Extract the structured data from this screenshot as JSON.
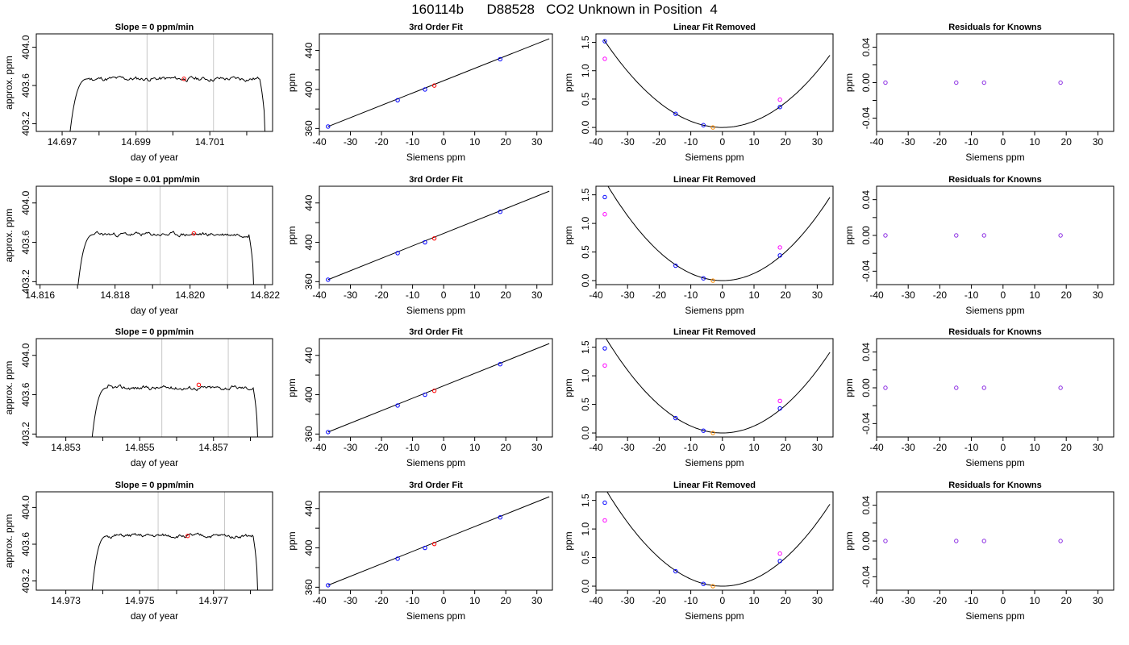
{
  "figure": {
    "title": "160114b      D88528   CO2 Unknown in Position  4"
  },
  "colors": {
    "axis": "#000000",
    "line": "#000000",
    "known_point": "#0000ff",
    "unknown_point": "#ff0000",
    "linear_unknown_point": "#ff8c00",
    "residual_point": "#8a2be2",
    "alt_point": "#ff00ff",
    "vline": "#c8c8c8"
  },
  "chart_data": [
    {
      "type": "line",
      "row": 0,
      "col": 0,
      "panel": "timeseries",
      "title": "Slope =  0  ppm/min",
      "xlabel": "day of year",
      "ylabel": "approx. ppm",
      "xlim": [
        14.6963,
        14.7027
      ],
      "ylim": [
        403.12,
        404.14
      ],
      "xticks": [
        14.697,
        14.699,
        14.701
      ],
      "xtick_labels": [
        "14.697",
        "14.699",
        "14.701"
      ],
      "xminor": [
        14.698,
        14.7,
        14.702
      ],
      "yticks": [
        403.2,
        403.6,
        404.0
      ],
      "ytick_labels": [
        "403.2",
        "403.6",
        "404.0"
      ],
      "vlines": [
        14.6993,
        14.7011
      ],
      "series": {
        "start": 14.6972,
        "end": 14.7025,
        "level": 403.67,
        "noise": 0.035,
        "seed": 11
      },
      "unknown_point": {
        "x": 14.7003,
        "y": 403.67
      }
    },
    {
      "type": "scatter",
      "row": 0,
      "col": 1,
      "panel": "fit",
      "title": "3rd Order Fit",
      "xlabel": "Siemens ppm",
      "ylabel": "ppm",
      "xlim": [
        -40,
        35
      ],
      "ylim": [
        357,
        457
      ],
      "xticks": [
        -40,
        -30,
        -20,
        -10,
        0,
        10,
        20,
        30
      ],
      "xtick_labels": [
        "-40",
        "-30",
        "-20",
        "-10",
        "0",
        "10",
        "20",
        "30"
      ],
      "yticks": [
        360,
        400,
        440
      ],
      "ytick_labels": [
        "360",
        "400",
        "440"
      ],
      "yminor": [
        380,
        420
      ],
      "fit_line": {
        "x": [
          -37.2,
          34.0
        ],
        "y": [
          362,
          452
        ]
      },
      "knowns": [
        {
          "x": -37.2,
          "y": 362
        },
        {
          "x": -14.8,
          "y": 389
        },
        {
          "x": -6.0,
          "y": 400
        },
        {
          "x": 18.2,
          "y": 431
        }
      ],
      "unknown_point": {
        "x": -3.0,
        "y": 404
      }
    },
    {
      "type": "scatter",
      "row": 0,
      "col": 2,
      "panel": "linear",
      "title": "Linear Fit Removed",
      "xlabel": "Siemens ppm",
      "ylabel": "ppm",
      "xlim": [
        -40,
        35
      ],
      "ylim": [
        -0.07,
        1.65
      ],
      "xticks": [
        -40,
        -30,
        -20,
        -10,
        0,
        10,
        20,
        30
      ],
      "xtick_labels": [
        "-40",
        "-30",
        "-20",
        "-10",
        "0",
        "10",
        "20",
        "30"
      ],
      "yticks": [
        0.0,
        0.5,
        1.0,
        1.5
      ],
      "ytick_labels": [
        "0.0",
        "0.5",
        "1.0",
        "1.5"
      ],
      "curve": {
        "a": 0.0011,
        "b": 0.0,
        "c": 0.0,
        "x0": -37.5,
        "x1": 34.0
      },
      "knowns": [
        {
          "x": -37.2,
          "y": 1.52
        },
        {
          "x": -14.8,
          "y": 0.24
        },
        {
          "x": -6.0,
          "y": 0.04
        },
        {
          "x": 18.2,
          "y": 0.36
        }
      ],
      "alt_points": [
        {
          "x": -37.2,
          "y": 1.21
        },
        {
          "x": 18.2,
          "y": 0.49
        }
      ],
      "unknown_point": {
        "x": -3.0,
        "y": 0.0
      }
    },
    {
      "type": "scatter",
      "row": 0,
      "col": 3,
      "panel": "residual",
      "title": "Residuals for Knowns",
      "xlabel": "Siemens ppm",
      "ylabel": "ppm",
      "xlim": [
        -40,
        35
      ],
      "ylim": [
        -0.055,
        0.055
      ],
      "xticks": [
        -40,
        -30,
        -20,
        -10,
        0,
        10,
        20,
        30
      ],
      "xtick_labels": [
        "-40",
        "-30",
        "-20",
        "-10",
        "0",
        "10",
        "20",
        "30"
      ],
      "yticks": [
        -0.04,
        0.0,
        0.04
      ],
      "ytick_labels": [
        "-0.04",
        "0.00",
        "0.04"
      ],
      "yminor": [
        -0.02,
        0.02
      ],
      "points": [
        {
          "x": -37.2,
          "y": 0.0
        },
        {
          "x": -14.8,
          "y": 0.0
        },
        {
          "x": -6.0,
          "y": 0.0
        },
        {
          "x": 18.2,
          "y": 0.0
        }
      ]
    },
    {
      "type": "line",
      "row": 1,
      "col": 0,
      "panel": "timeseries",
      "title": "Slope =  0.01  ppm/min",
      "xlabel": "day of year",
      "ylabel": "approx. ppm",
      "xlim": [
        14.8159,
        14.8222
      ],
      "ylim": [
        403.17,
        404.17
      ],
      "xticks": [
        14.816,
        14.818,
        14.82,
        14.822
      ],
      "xtick_labels": [
        "14.816",
        "14.818",
        "14.820",
        "14.822"
      ],
      "xminor": [
        14.817,
        14.819,
        14.821
      ],
      "yticks": [
        403.2,
        403.6,
        404.0
      ],
      "ytick_labels": [
        "403.2",
        "403.6",
        "404.0"
      ],
      "vlines": [
        14.8192,
        14.821
      ],
      "series": {
        "start": 14.817,
        "end": 14.8217,
        "level": 403.68,
        "noise": 0.03,
        "seed": 23
      },
      "unknown_point": {
        "x": 14.8201,
        "y": 403.69
      }
    },
    {
      "type": "scatter",
      "row": 1,
      "col": 1,
      "panel": "fit",
      "title": "3rd Order Fit",
      "xlabel": "Siemens ppm",
      "ylabel": "ppm",
      "xlim": [
        -40,
        35
      ],
      "ylim": [
        357,
        457
      ],
      "xticks": [
        -40,
        -30,
        -20,
        -10,
        0,
        10,
        20,
        30
      ],
      "xtick_labels": [
        "-40",
        "-30",
        "-20",
        "-10",
        "0",
        "10",
        "20",
        "30"
      ],
      "yticks": [
        360,
        400,
        440
      ],
      "ytick_labels": [
        "360",
        "400",
        "440"
      ],
      "yminor": [
        380,
        420
      ],
      "fit_line": {
        "x": [
          -37.2,
          34.0
        ],
        "y": [
          362,
          452
        ]
      },
      "knowns": [
        {
          "x": -37.2,
          "y": 362
        },
        {
          "x": -14.8,
          "y": 389
        },
        {
          "x": -6.0,
          "y": 400
        },
        {
          "x": 18.2,
          "y": 431
        }
      ],
      "unknown_point": {
        "x": -3.0,
        "y": 404
      }
    },
    {
      "type": "scatter",
      "row": 1,
      "col": 2,
      "panel": "linear",
      "title": "Linear Fit Removed",
      "xlabel": "Siemens ppm",
      "ylabel": "ppm",
      "xlim": [
        -40,
        35
      ],
      "ylim": [
        -0.07,
        1.65
      ],
      "xticks": [
        -40,
        -30,
        -20,
        -10,
        0,
        10,
        20,
        30
      ],
      "xtick_labels": [
        "-40",
        "-30",
        "-20",
        "-10",
        "0",
        "10",
        "20",
        "30"
      ],
      "yticks": [
        0.0,
        0.5,
        1.0,
        1.5
      ],
      "ytick_labels": [
        "0.0",
        "0.5",
        "1.0",
        "1.5"
      ],
      "curve": {
        "a": 0.00126,
        "b": 0.0,
        "c": 0.0,
        "x0": -37.5,
        "x1": 34.0
      },
      "knowns": [
        {
          "x": -37.2,
          "y": 1.46
        },
        {
          "x": -14.8,
          "y": 0.26
        },
        {
          "x": -6.0,
          "y": 0.04
        },
        {
          "x": 18.2,
          "y": 0.44
        }
      ],
      "alt_points": [
        {
          "x": -37.2,
          "y": 1.16
        },
        {
          "x": 18.2,
          "y": 0.58
        }
      ],
      "unknown_point": {
        "x": -3.0,
        "y": 0.0
      }
    },
    {
      "type": "scatter",
      "row": 1,
      "col": 3,
      "panel": "residual",
      "title": "Residuals for Knowns",
      "xlabel": "Siemens ppm",
      "ylabel": "ppm",
      "xlim": [
        -40,
        35
      ],
      "ylim": [
        -0.055,
        0.055
      ],
      "xticks": [
        -40,
        -30,
        -20,
        -10,
        0,
        10,
        20,
        30
      ],
      "xtick_labels": [
        "-40",
        "-30",
        "-20",
        "-10",
        "0",
        "10",
        "20",
        "30"
      ],
      "yticks": [
        -0.04,
        0.0,
        0.04
      ],
      "ytick_labels": [
        "-0.04",
        "0.00",
        "0.04"
      ],
      "yminor": [
        -0.02,
        0.02
      ],
      "points": [
        {
          "x": -37.2,
          "y": 0.0
        },
        {
          "x": -14.8,
          "y": 0.0
        },
        {
          "x": -6.0,
          "y": 0.0
        },
        {
          "x": 18.2,
          "y": 0.0
        }
      ]
    },
    {
      "type": "line",
      "row": 2,
      "col": 0,
      "panel": "timeseries",
      "title": "Slope =  0  ppm/min",
      "xlabel": "day of year",
      "ylabel": "approx. ppm",
      "xlim": [
        14.8522,
        14.8586
      ],
      "ylim": [
        403.17,
        404.17
      ],
      "xticks": [
        14.853,
        14.855,
        14.857
      ],
      "xtick_labels": [
        "14.853",
        "14.855",
        "14.857"
      ],
      "xminor": [
        14.854,
        14.856,
        14.858
      ],
      "yticks": [
        403.2,
        403.6,
        404.0
      ],
      "ytick_labels": [
        "403.2",
        "403.6",
        "404.0"
      ],
      "vlines": [
        14.8556,
        14.8574
      ],
      "series": {
        "start": 14.8537,
        "end": 14.8582,
        "level": 403.67,
        "noise": 0.03,
        "seed": 37
      },
      "unknown_point": {
        "x": 14.8566,
        "y": 403.7
      }
    },
    {
      "type": "scatter",
      "row": 2,
      "col": 1,
      "panel": "fit",
      "title": "3rd Order Fit",
      "xlabel": "Siemens ppm",
      "ylabel": "ppm",
      "xlim": [
        -40,
        35
      ],
      "ylim": [
        357,
        457
      ],
      "xticks": [
        -40,
        -30,
        -20,
        -10,
        0,
        10,
        20,
        30
      ],
      "xtick_labels": [
        "-40",
        "-30",
        "-20",
        "-10",
        "0",
        "10",
        "20",
        "30"
      ],
      "yticks": [
        360,
        400,
        440
      ],
      "ytick_labels": [
        "360",
        "400",
        "440"
      ],
      "yminor": [
        380,
        420
      ],
      "fit_line": {
        "x": [
          -37.2,
          34.0
        ],
        "y": [
          362,
          452
        ]
      },
      "knowns": [
        {
          "x": -37.2,
          "y": 362
        },
        {
          "x": -14.8,
          "y": 389
        },
        {
          "x": -6.0,
          "y": 400
        },
        {
          "x": 18.2,
          "y": 431
        }
      ],
      "unknown_point": {
        "x": -3.0,
        "y": 404
      }
    },
    {
      "type": "scatter",
      "row": 2,
      "col": 2,
      "panel": "linear",
      "title": "Linear Fit Removed",
      "xlabel": "Siemens ppm",
      "ylabel": "ppm",
      "xlim": [
        -40,
        35
      ],
      "ylim": [
        -0.07,
        1.65
      ],
      "xticks": [
        -40,
        -30,
        -20,
        -10,
        0,
        10,
        20,
        30
      ],
      "xtick_labels": [
        "-40",
        "-30",
        "-20",
        "-10",
        "0",
        "10",
        "20",
        "30"
      ],
      "yticks": [
        0.0,
        0.5,
        1.0,
        1.5
      ],
      "ytick_labels": [
        "0.0",
        "0.5",
        "1.0",
        "1.5"
      ],
      "curve": {
        "a": 0.00122,
        "b": 0.0,
        "c": 0.0,
        "x0": -37.5,
        "x1": 34.0
      },
      "knowns": [
        {
          "x": -37.2,
          "y": 1.48
        },
        {
          "x": -14.8,
          "y": 0.26
        },
        {
          "x": -6.0,
          "y": 0.04
        },
        {
          "x": 18.2,
          "y": 0.43
        }
      ],
      "alt_points": [
        {
          "x": -37.2,
          "y": 1.18
        },
        {
          "x": 18.2,
          "y": 0.56
        }
      ],
      "unknown_point": {
        "x": -3.0,
        "y": 0.0
      }
    },
    {
      "type": "scatter",
      "row": 2,
      "col": 3,
      "panel": "residual",
      "title": "Residuals for Knowns",
      "xlabel": "Siemens ppm",
      "ylabel": "ppm",
      "xlim": [
        -40,
        35
      ],
      "ylim": [
        -0.055,
        0.055
      ],
      "xticks": [
        -40,
        -30,
        -20,
        -10,
        0,
        10,
        20,
        30
      ],
      "xtick_labels": [
        "-40",
        "-30",
        "-20",
        "-10",
        "0",
        "10",
        "20",
        "30"
      ],
      "yticks": [
        -0.04,
        0.0,
        0.04
      ],
      "ytick_labels": [
        "-0.04",
        "0.00",
        "0.04"
      ],
      "yminor": [
        -0.02,
        0.02
      ],
      "points": [
        {
          "x": -37.2,
          "y": 0.0
        },
        {
          "x": -14.8,
          "y": 0.0
        },
        {
          "x": -6.0,
          "y": 0.0
        },
        {
          "x": 18.2,
          "y": 0.0
        }
      ]
    },
    {
      "type": "line",
      "row": 3,
      "col": 0,
      "panel": "timeseries",
      "title": "Slope =  0  ppm/min",
      "xlabel": "day of year",
      "ylabel": "approx. ppm",
      "xlim": [
        14.9722,
        14.9786
      ],
      "ylim": [
        403.1,
        404.17
      ],
      "xticks": [
        14.973,
        14.975,
        14.977
      ],
      "xtick_labels": [
        "14.973",
        "14.975",
        "14.977"
      ],
      "xminor": [
        14.974,
        14.976,
        14.978
      ],
      "yticks": [
        403.2,
        403.6,
        404.0
      ],
      "ytick_labels": [
        "403.2",
        "403.6",
        "404.0"
      ],
      "vlines": [
        14.9755,
        14.9773
      ],
      "series": {
        "start": 14.9737,
        "end": 14.9782,
        "level": 403.69,
        "noise": 0.03,
        "seed": 51
      },
      "unknown_point": {
        "x": 14.9763,
        "y": 403.69
      }
    },
    {
      "type": "scatter",
      "row": 3,
      "col": 1,
      "panel": "fit",
      "title": "3rd Order Fit",
      "xlabel": "Siemens ppm",
      "ylabel": "ppm",
      "xlim": [
        -40,
        35
      ],
      "ylim": [
        357,
        457
      ],
      "xticks": [
        -40,
        -30,
        -20,
        -10,
        0,
        10,
        20,
        30
      ],
      "xtick_labels": [
        "-40",
        "-30",
        "-20",
        "-10",
        "0",
        "10",
        "20",
        "30"
      ],
      "yticks": [
        360,
        400,
        440
      ],
      "ytick_labels": [
        "360",
        "400",
        "440"
      ],
      "yminor": [
        380,
        420
      ],
      "fit_line": {
        "x": [
          -37.2,
          34.0
        ],
        "y": [
          362,
          452
        ]
      },
      "knowns": [
        {
          "x": -37.2,
          "y": 362
        },
        {
          "x": -14.8,
          "y": 389
        },
        {
          "x": -6.0,
          "y": 400
        },
        {
          "x": 18.2,
          "y": 431
        }
      ],
      "unknown_point": {
        "x": -3.0,
        "y": 404
      }
    },
    {
      "type": "scatter",
      "row": 3,
      "col": 2,
      "panel": "linear",
      "title": "Linear Fit Removed",
      "xlabel": "Siemens ppm",
      "ylabel": "ppm",
      "xlim": [
        -40,
        35
      ],
      "ylim": [
        -0.07,
        1.65
      ],
      "xticks": [
        -40,
        -30,
        -20,
        -10,
        0,
        10,
        20,
        30
      ],
      "xtick_labels": [
        "-40",
        "-30",
        "-20",
        "-10",
        "0",
        "10",
        "20",
        "30"
      ],
      "yticks": [
        0.0,
        0.5,
        1.0,
        1.5
      ],
      "ytick_labels": [
        "0.0",
        "0.5",
        "1.0",
        "1.5"
      ],
      "curve": {
        "a": 0.00124,
        "b": 0.0,
        "c": 0.0,
        "x0": -37.5,
        "x1": 34.0
      },
      "knowns": [
        {
          "x": -37.2,
          "y": 1.46
        },
        {
          "x": -14.8,
          "y": 0.26
        },
        {
          "x": -6.0,
          "y": 0.04
        },
        {
          "x": 18.2,
          "y": 0.44
        }
      ],
      "alt_points": [
        {
          "x": -37.2,
          "y": 1.15
        },
        {
          "x": 18.2,
          "y": 0.57
        }
      ],
      "unknown_point": {
        "x": -3.0,
        "y": 0.0
      }
    },
    {
      "type": "scatter",
      "row": 3,
      "col": 3,
      "panel": "residual",
      "title": "Residuals for Knowns",
      "xlabel": "Siemens ppm",
      "ylabel": "ppm",
      "xlim": [
        -40,
        35
      ],
      "ylim": [
        -0.055,
        0.055
      ],
      "xticks": [
        -40,
        -30,
        -20,
        -10,
        0,
        10,
        20,
        30
      ],
      "xtick_labels": [
        "-40",
        "-30",
        "-20",
        "-10",
        "0",
        "10",
        "20",
        "30"
      ],
      "yticks": [
        -0.04,
        0.0,
        0.04
      ],
      "ytick_labels": [
        "-0.04",
        "0.00",
        "0.04"
      ],
      "yminor": [
        -0.02,
        0.02
      ],
      "points": [
        {
          "x": -37.2,
          "y": 0.0
        },
        {
          "x": -14.8,
          "y": 0.0
        },
        {
          "x": -6.0,
          "y": 0.0
        },
        {
          "x": 18.2,
          "y": 0.0
        }
      ]
    }
  ]
}
